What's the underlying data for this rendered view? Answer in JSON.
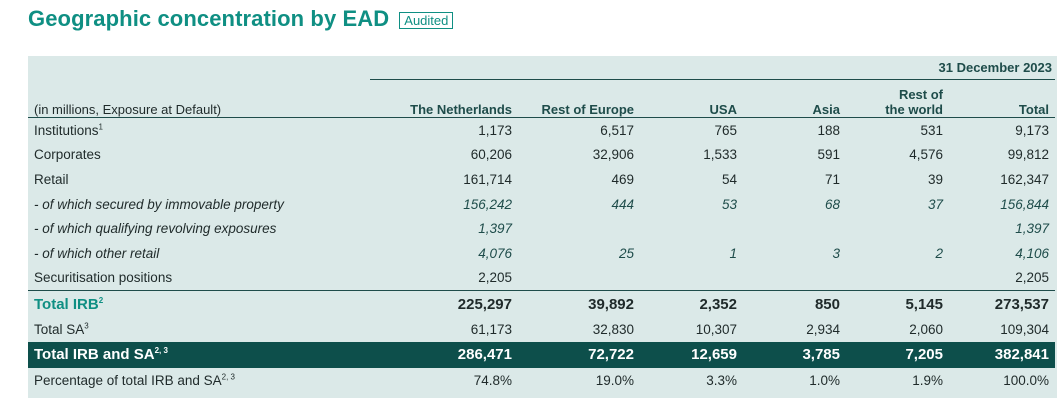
{
  "title": "Geographic concentration by EAD",
  "badge": "Audited",
  "date": "31 December 2023",
  "columns": {
    "label": "(in millions, Exposure at Default)",
    "netherlands": "The Netherlands",
    "rest_of_europe": "Rest of Europe",
    "usa": "USA",
    "asia": "Asia",
    "rest_of_world_1": "Rest of",
    "rest_of_world_2": "the world",
    "total": "Total"
  },
  "rows": [
    {
      "label": "Institutions",
      "sup": "1",
      "values": [
        "1,173",
        "6,517",
        "765",
        "188",
        "531",
        "9,173"
      ]
    },
    {
      "label": "Corporates",
      "sup": "",
      "values": [
        "60,206",
        "32,906",
        "1,533",
        "591",
        "4,576",
        "99,812"
      ]
    },
    {
      "label": "Retail",
      "sup": "",
      "values": [
        "161,714",
        "469",
        "54",
        "71",
        "39",
        "162,347"
      ]
    },
    {
      "label": "- of which secured by immovable property",
      "sup": "",
      "values": [
        "156,242",
        "444",
        "53",
        "68",
        "37",
        "156,844"
      ]
    },
    {
      "label": "- of which qualifying revolving exposures",
      "sup": "",
      "values": [
        "1,397",
        "",
        "",
        "",
        "",
        "1,397"
      ]
    },
    {
      "label": "- of which other retail",
      "sup": "",
      "values": [
        "4,076",
        "25",
        "1",
        "3",
        "2",
        "4,106"
      ]
    },
    {
      "label": "Securitisation positions",
      "sup": "",
      "values": [
        "2,205",
        "",
        "",
        "",
        "",
        "2,205"
      ]
    },
    {
      "label": "Total IRB",
      "sup": "2",
      "values": [
        "225,297",
        "39,892",
        "2,352",
        "850",
        "5,145",
        "273,537"
      ]
    },
    {
      "label": "Total SA",
      "sup": "3",
      "values": [
        "61,173",
        "32,830",
        "10,307",
        "2,934",
        "2,060",
        "109,304"
      ]
    },
    {
      "label": "Total IRB and SA",
      "sup": "2, 3",
      "values": [
        "286,471",
        "72,722",
        "12,659",
        "3,785",
        "7,205",
        "382,841"
      ]
    },
    {
      "label": "Percentage of total IRB and SA",
      "sup": "2, 3",
      "values": [
        "74.8%",
        "19.0%",
        "3.3%",
        "1.0%",
        "1.9%",
        "100.0%"
      ]
    }
  ],
  "colors": {
    "accent": "#0f8f83",
    "dark": "#0d4f4b",
    "panel": "#dbe9e8"
  }
}
